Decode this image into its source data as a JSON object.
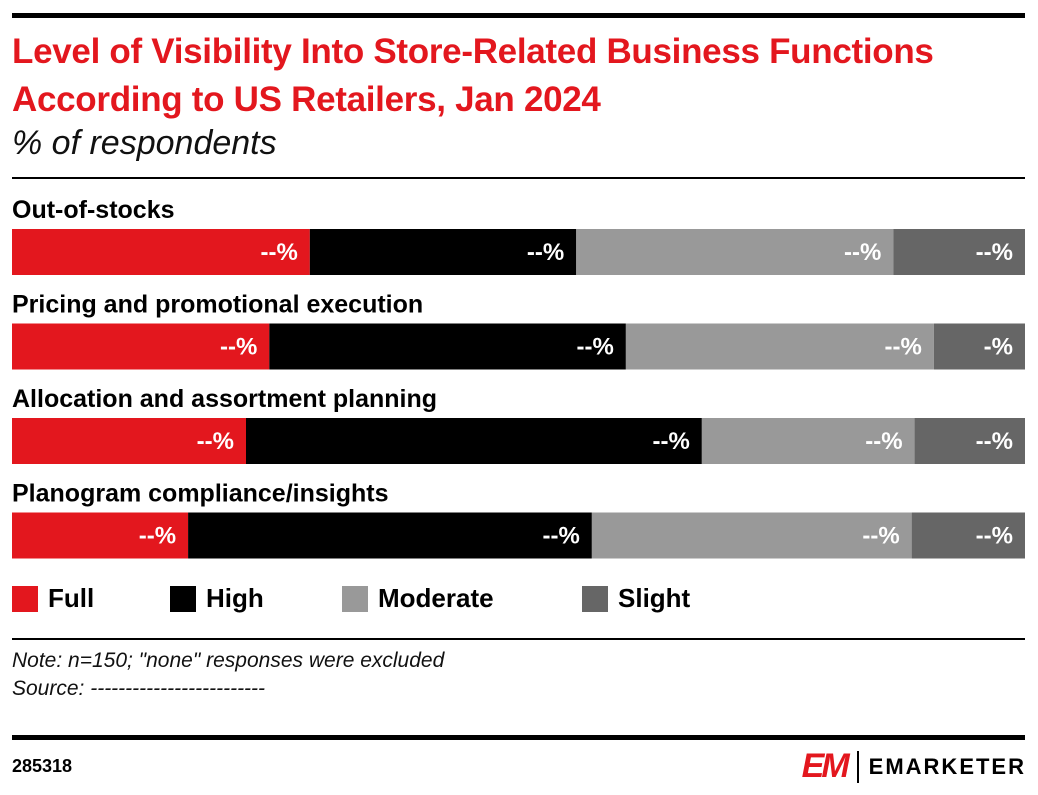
{
  "title": "Level of Visibility Into Store-Related Business Functions According to US Retailers, Jan 2024",
  "subtitle": "% of respondents",
  "chart_data": {
    "type": "bar",
    "orientation": "horizontal",
    "stacked": true,
    "title": "Level of Visibility Into Store-Related Business Functions According to US Retailers, Jan 2024",
    "subtitle": "% of respondents",
    "categories": [
      "Out-of-stocks",
      "Pricing and promotional execution",
      "Allocation and assortment planning",
      "Planogram compliance/insights"
    ],
    "series": [
      {
        "name": "Full",
        "color": "#e3171e",
        "values": [
          29.4,
          25.4,
          23.1,
          17.4
        ],
        "labels": [
          "--%",
          "--%",
          "--%",
          "--%"
        ]
      },
      {
        "name": "High",
        "color": "#000000",
        "values": [
          26.3,
          35.2,
          45.0,
          39.9
        ],
        "labels": [
          "--%",
          "--%",
          "--%",
          "--%"
        ]
      },
      {
        "name": "Moderate",
        "color": "#999999",
        "values": [
          31.3,
          30.4,
          21.0,
          31.6
        ],
        "labels": [
          "--%",
          "--%",
          "--%",
          "--%"
        ]
      },
      {
        "name": "Slight",
        "color": "#666666",
        "values": [
          13.0,
          9.0,
          10.9,
          11.2
        ],
        "labels": [
          "--%",
          "-%",
          "--%",
          "--%"
        ]
      }
    ],
    "xlim": [
      0,
      100
    ],
    "grid": false,
    "legend": "bottom"
  },
  "note": "Note: n=150; \"none\" responses were excluded",
  "source": "Source: -------------------------",
  "chart_id": "285318",
  "logo": {
    "mark": "EM",
    "text": "EMARKETER"
  }
}
